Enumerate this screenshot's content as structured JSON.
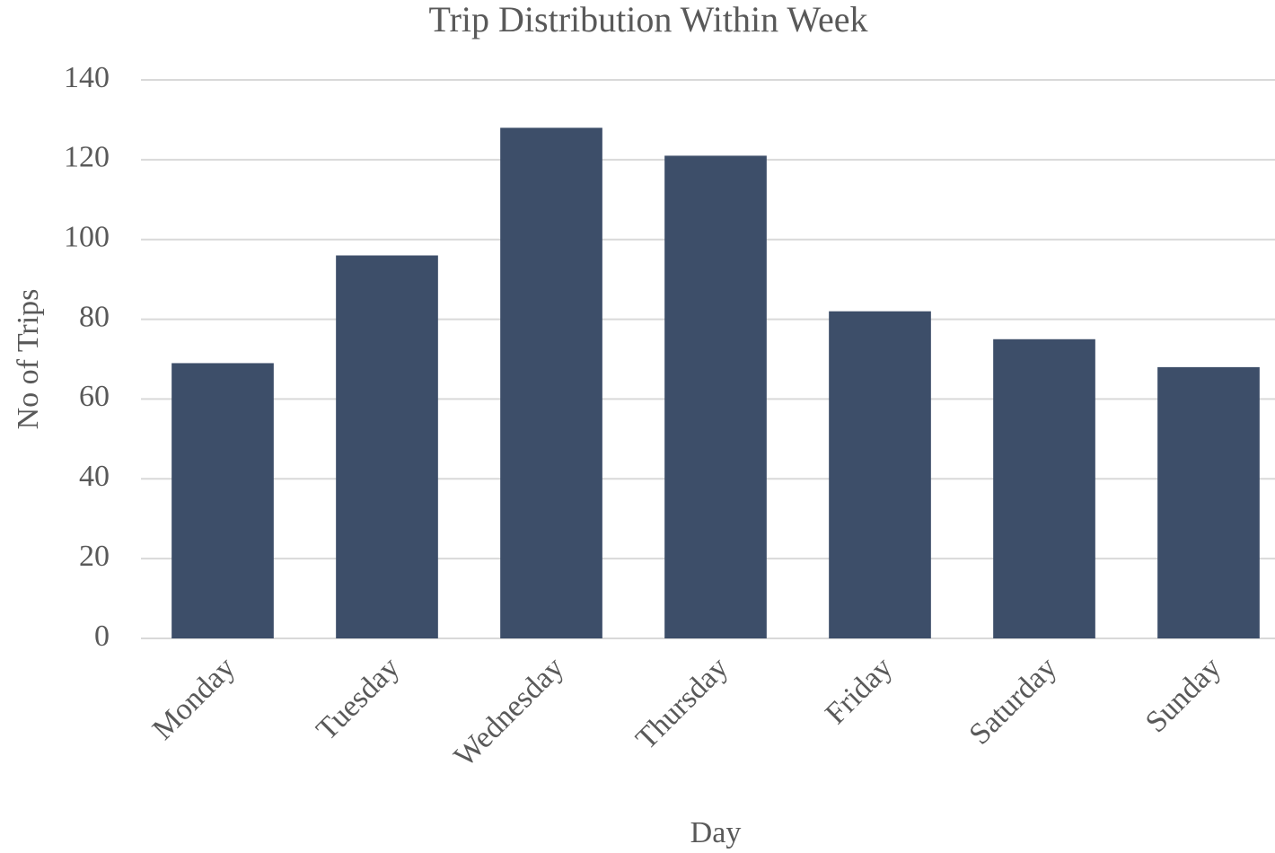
{
  "chart_data": {
    "type": "bar",
    "title": "Trip Distribution Within Week",
    "x_label": "Day",
    "y_label": "No of Trips",
    "categories": [
      "Monday",
      "Tuesday",
      "Wednesday",
      "Thursday",
      "Friday",
      "Saturday",
      "Sunday"
    ],
    "values": [
      69,
      96,
      128,
      121,
      82,
      75,
      68
    ],
    "color": "#3d4e69",
    "ylim": [
      0,
      140
    ],
    "yticks": [
      0,
      20,
      40,
      60,
      80,
      100,
      120,
      140
    ],
    "grid": true
  }
}
